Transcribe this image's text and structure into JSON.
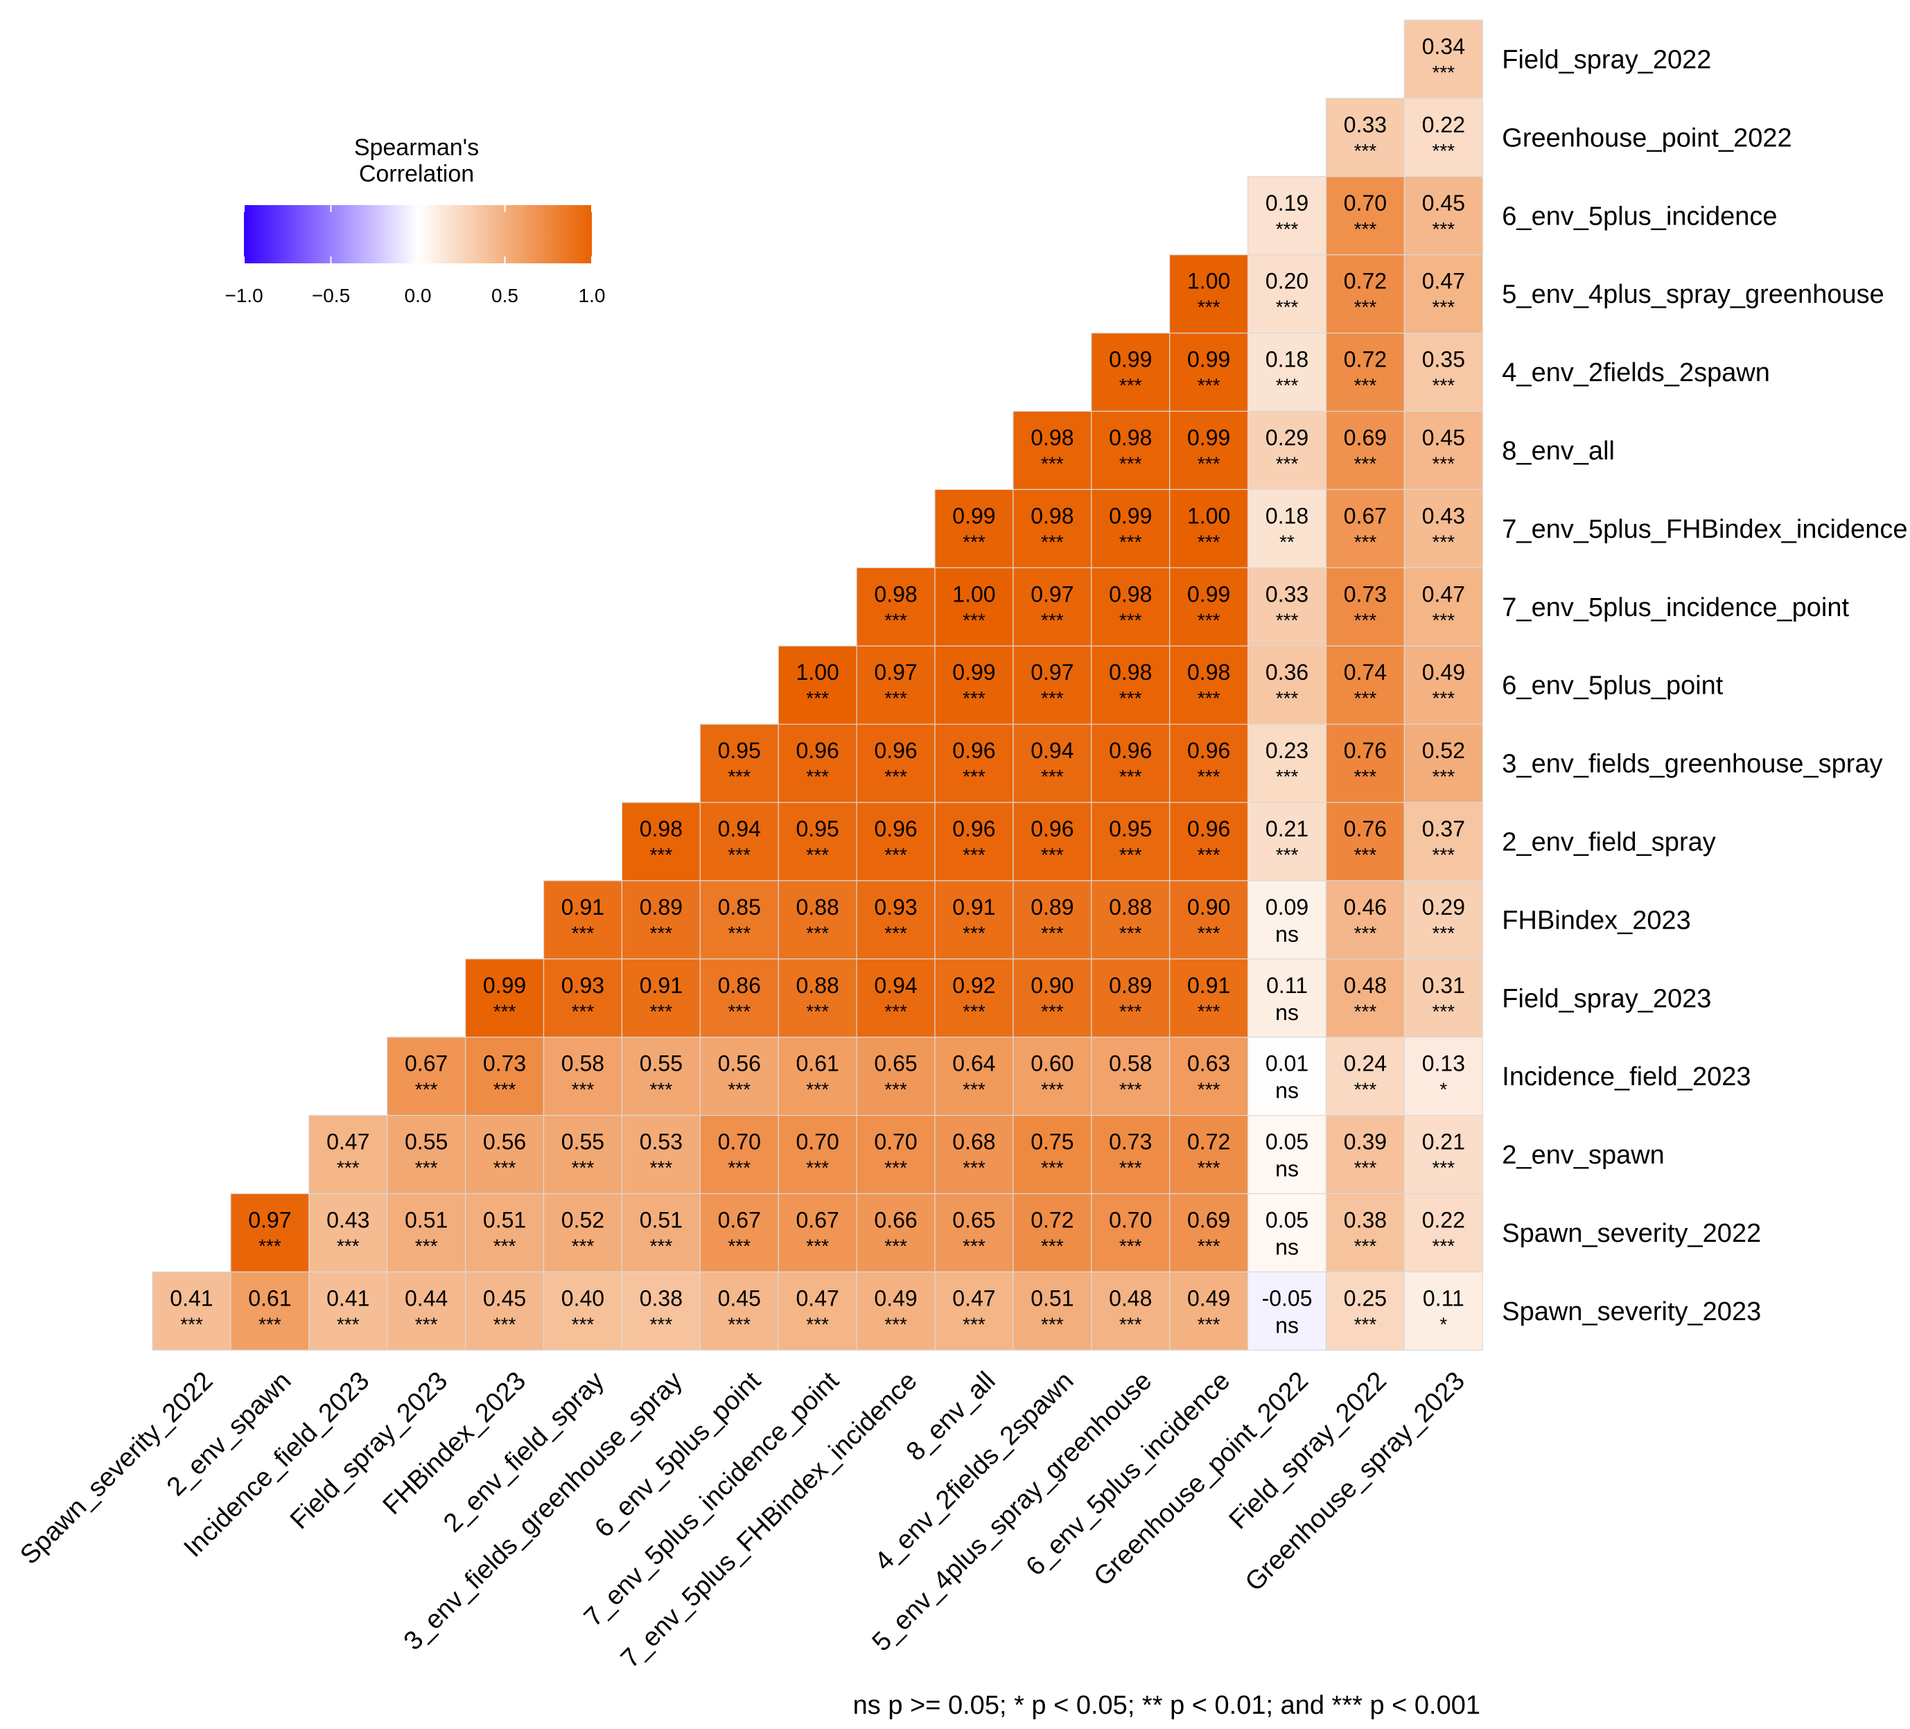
{
  "chart_data": {
    "type": "heatmap",
    "title": "",
    "legend": {
      "title_line1": "Spearman's",
      "title_line2": "Correlation",
      "ticks": [
        "−1.0",
        "−0.5",
        "0.0",
        "0.5",
        "1.0"
      ],
      "tick_values": [
        -1.0,
        -0.5,
        0.0,
        0.5,
        1.0
      ],
      "range": [
        -1,
        1
      ],
      "low_color": "#3300ff",
      "mid_color": "#ffffff",
      "high_color": "#e86100"
    },
    "footnote": "ns p >= 0.05; * p < 0.05; ** p < 0.01; and *** p < 0.001",
    "x_labels": [
      "Spawn_severity_2022",
      "2_env_spawn",
      "Incidence_field_2023",
      "Field_spray_2023",
      "FHBindex_2023",
      "2_env_field_spray",
      "3_env_fields_greenhouse_spray",
      "6_env_5plus_point",
      "7_env_5plus_incidence_point",
      "7_env_5plus_FHBindex_incidence",
      "8_env_all",
      "4_env_2fields_2spawn",
      "5_env_4plus_spray_greenhouse",
      "6_env_5plus_incidence",
      "Greenhouse_point_2022",
      "Field_spray_2022",
      "Greenhouse_spray_2023"
    ],
    "y_labels": [
      "Field_spray_2022",
      "Greenhouse_point_2022",
      "6_env_5plus_incidence",
      "5_env_4plus_spray_greenhouse",
      "4_env_2fields_2spawn",
      "8_env_all",
      "7_env_5plus_FHBindex_incidence",
      "7_env_5plus_incidence_point",
      "6_env_5plus_point",
      "3_env_fields_greenhouse_spray",
      "2_env_field_spray",
      "FHBindex_2023",
      "Field_spray_2023",
      "Incidence_field_2023",
      "2_env_spawn",
      "Spawn_severity_2022",
      "Spawn_severity_2023"
    ],
    "rows": [
      {
        "values": [
          null,
          null,
          null,
          null,
          null,
          null,
          null,
          null,
          null,
          null,
          null,
          null,
          null,
          null,
          null,
          null,
          "0.34"
        ],
        "sig": [
          null,
          null,
          null,
          null,
          null,
          null,
          null,
          null,
          null,
          null,
          null,
          null,
          null,
          null,
          null,
          null,
          "***"
        ]
      },
      {
        "values": [
          null,
          null,
          null,
          null,
          null,
          null,
          null,
          null,
          null,
          null,
          null,
          null,
          null,
          null,
          null,
          "0.33",
          "0.22"
        ],
        "sig": [
          null,
          null,
          null,
          null,
          null,
          null,
          null,
          null,
          null,
          null,
          null,
          null,
          null,
          null,
          null,
          "***",
          "***"
        ]
      },
      {
        "values": [
          null,
          null,
          null,
          null,
          null,
          null,
          null,
          null,
          null,
          null,
          null,
          null,
          null,
          null,
          "0.19",
          "0.70",
          "0.45"
        ],
        "sig": [
          null,
          null,
          null,
          null,
          null,
          null,
          null,
          null,
          null,
          null,
          null,
          null,
          null,
          null,
          "***",
          "***",
          "***"
        ]
      },
      {
        "values": [
          null,
          null,
          null,
          null,
          null,
          null,
          null,
          null,
          null,
          null,
          null,
          null,
          null,
          "1.00",
          "0.20",
          "0.72",
          "0.47"
        ],
        "sig": [
          null,
          null,
          null,
          null,
          null,
          null,
          null,
          null,
          null,
          null,
          null,
          null,
          null,
          "***",
          "***",
          "***",
          "***"
        ]
      },
      {
        "values": [
          null,
          null,
          null,
          null,
          null,
          null,
          null,
          null,
          null,
          null,
          null,
          null,
          "0.99",
          "0.99",
          "0.18",
          "0.72",
          "0.35"
        ],
        "sig": [
          null,
          null,
          null,
          null,
          null,
          null,
          null,
          null,
          null,
          null,
          null,
          null,
          "***",
          "***",
          "***",
          "***",
          "***"
        ]
      },
      {
        "values": [
          null,
          null,
          null,
          null,
          null,
          null,
          null,
          null,
          null,
          null,
          null,
          "0.98",
          "0.98",
          "0.99",
          "0.29",
          "0.69",
          "0.45"
        ],
        "sig": [
          null,
          null,
          null,
          null,
          null,
          null,
          null,
          null,
          null,
          null,
          null,
          "***",
          "***",
          "***",
          "***",
          "***",
          "***"
        ]
      },
      {
        "values": [
          null,
          null,
          null,
          null,
          null,
          null,
          null,
          null,
          null,
          null,
          "0.99",
          "0.98",
          "0.99",
          "1.00",
          "0.18",
          "0.67",
          "0.43"
        ],
        "sig": [
          null,
          null,
          null,
          null,
          null,
          null,
          null,
          null,
          null,
          null,
          "***",
          "***",
          "***",
          "***",
          "**",
          "***",
          "***"
        ]
      },
      {
        "values": [
          null,
          null,
          null,
          null,
          null,
          null,
          null,
          null,
          null,
          "0.98",
          "1.00",
          "0.97",
          "0.98",
          "0.99",
          "0.33",
          "0.73",
          "0.47"
        ],
        "sig": [
          null,
          null,
          null,
          null,
          null,
          null,
          null,
          null,
          null,
          "***",
          "***",
          "***",
          "***",
          "***",
          "***",
          "***",
          "***"
        ]
      },
      {
        "values": [
          null,
          null,
          null,
          null,
          null,
          null,
          null,
          null,
          "1.00",
          "0.97",
          "0.99",
          "0.97",
          "0.98",
          "0.98",
          "0.36",
          "0.74",
          "0.49"
        ],
        "sig": [
          null,
          null,
          null,
          null,
          null,
          null,
          null,
          null,
          "***",
          "***",
          "***",
          "***",
          "***",
          "***",
          "***",
          "***",
          "***"
        ]
      },
      {
        "values": [
          null,
          null,
          null,
          null,
          null,
          null,
          null,
          "0.95",
          "0.96",
          "0.96",
          "0.96",
          "0.94",
          "0.96",
          "0.96",
          "0.23",
          "0.76",
          "0.52"
        ],
        "sig": [
          null,
          null,
          null,
          null,
          null,
          null,
          null,
          "***",
          "***",
          "***",
          "***",
          "***",
          "***",
          "***",
          "***",
          "***",
          "***"
        ]
      },
      {
        "values": [
          null,
          null,
          null,
          null,
          null,
          null,
          "0.98",
          "0.94",
          "0.95",
          "0.96",
          "0.96",
          "0.96",
          "0.95",
          "0.96",
          "0.21",
          "0.76",
          "0.37"
        ],
        "sig": [
          null,
          null,
          null,
          null,
          null,
          null,
          "***",
          "***",
          "***",
          "***",
          "***",
          "***",
          "***",
          "***",
          "***",
          "***",
          "***"
        ]
      },
      {
        "values": [
          null,
          null,
          null,
          null,
          null,
          "0.91",
          "0.89",
          "0.85",
          "0.88",
          "0.93",
          "0.91",
          "0.89",
          "0.88",
          "0.90",
          "0.09",
          "0.46",
          "0.29"
        ],
        "sig": [
          null,
          null,
          null,
          null,
          null,
          "***",
          "***",
          "***",
          "***",
          "***",
          "***",
          "***",
          "***",
          "***",
          "ns",
          "***",
          "***"
        ]
      },
      {
        "values": [
          null,
          null,
          null,
          null,
          "0.99",
          "0.93",
          "0.91",
          "0.86",
          "0.88",
          "0.94",
          "0.92",
          "0.90",
          "0.89",
          "0.91",
          "0.11",
          "0.48",
          "0.31"
        ],
        "sig": [
          null,
          null,
          null,
          null,
          "***",
          "***",
          "***",
          "***",
          "***",
          "***",
          "***",
          "***",
          "***",
          "***",
          "ns",
          "***",
          "***"
        ]
      },
      {
        "values": [
          null,
          null,
          null,
          "0.67",
          "0.73",
          "0.58",
          "0.55",
          "0.56",
          "0.61",
          "0.65",
          "0.64",
          "0.60",
          "0.58",
          "0.63",
          "0.01",
          "0.24",
          "0.13"
        ],
        "sig": [
          null,
          null,
          null,
          "***",
          "***",
          "***",
          "***",
          "***",
          "***",
          "***",
          "***",
          "***",
          "***",
          "***",
          "ns",
          "***",
          "*"
        ]
      },
      {
        "values": [
          null,
          null,
          "0.47",
          "0.55",
          "0.56",
          "0.55",
          "0.53",
          "0.70",
          "0.70",
          "0.70",
          "0.68",
          "0.75",
          "0.73",
          "0.72",
          "0.05",
          "0.39",
          "0.21"
        ],
        "sig": [
          null,
          null,
          "***",
          "***",
          "***",
          "***",
          "***",
          "***",
          "***",
          "***",
          "***",
          "***",
          "***",
          "***",
          "ns",
          "***",
          "***"
        ]
      },
      {
        "values": [
          null,
          "0.97",
          "0.43",
          "0.51",
          "0.51",
          "0.52",
          "0.51",
          "0.67",
          "0.67",
          "0.66",
          "0.65",
          "0.72",
          "0.70",
          "0.69",
          "0.05",
          "0.38",
          "0.22"
        ],
        "sig": [
          null,
          "***",
          "***",
          "***",
          "***",
          "***",
          "***",
          "***",
          "***",
          "***",
          "***",
          "***",
          "***",
          "***",
          "ns",
          "***",
          "***"
        ]
      },
      {
        "values": [
          "0.41",
          "0.61",
          "0.41",
          "0.44",
          "0.45",
          "0.40",
          "0.38",
          "0.45",
          "0.47",
          "0.49",
          "0.47",
          "0.51",
          "0.48",
          "0.49",
          "-0.05",
          "0.25",
          "0.11"
        ],
        "sig": [
          "***",
          "***",
          "***",
          "***",
          "***",
          "***",
          "***",
          "***",
          "***",
          "***",
          "***",
          "***",
          "***",
          "***",
          "ns",
          "***",
          "*"
        ]
      }
    ]
  }
}
